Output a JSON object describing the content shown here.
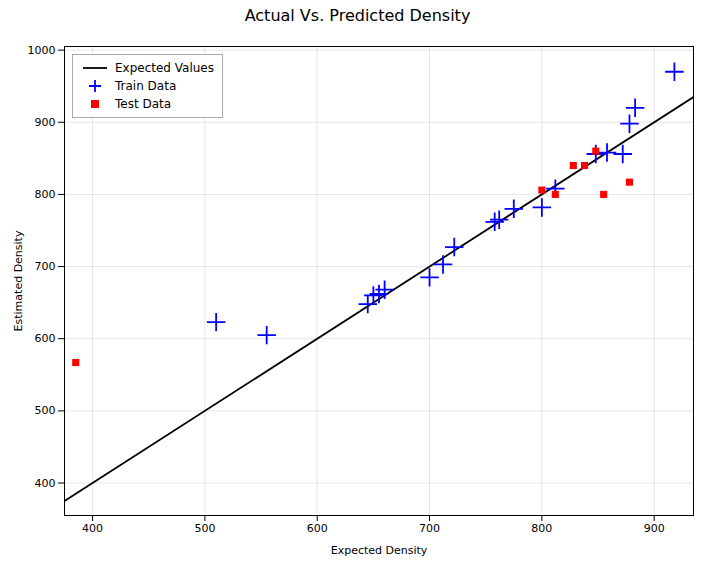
{
  "chart_data": {
    "type": "scatter",
    "title": "Actual Vs. Predicted Density",
    "xlabel": "Expected Density",
    "ylabel": "Estimated Density",
    "xlim": [
      375,
      935
    ],
    "ylim": [
      355,
      1005
    ],
    "xticks": [
      400,
      500,
      600,
      700,
      800,
      900
    ],
    "yticks": [
      400,
      500,
      600,
      700,
      800,
      900,
      1000
    ],
    "grid": true,
    "legend": "upper left",
    "series": [
      {
        "name": "Expected Values",
        "type": "line",
        "color": "black",
        "line_style": "solid",
        "x": [
          375,
          935
        ],
        "values": [
          375,
          935
        ]
      },
      {
        "name": "Train Data",
        "type": "scatter",
        "color": "blue",
        "marker": "plus",
        "x": [
          510,
          555,
          645,
          650,
          655,
          660,
          700,
          712,
          722,
          758,
          762,
          775,
          800,
          812,
          848,
          858,
          872,
          878,
          883,
          918
        ],
        "values": [
          623,
          605,
          648,
          660,
          662,
          668,
          685,
          703,
          727,
          762,
          765,
          780,
          782,
          808,
          856,
          858,
          856,
          898,
          920,
          970
        ]
      },
      {
        "name": "Test Data",
        "type": "scatter",
        "color": "red",
        "marker": "square",
        "x": [
          385,
          800,
          812,
          828,
          838,
          848,
          855,
          878
        ],
        "values": [
          567,
          806,
          800,
          840,
          840,
          860,
          800,
          817
        ]
      }
    ]
  }
}
